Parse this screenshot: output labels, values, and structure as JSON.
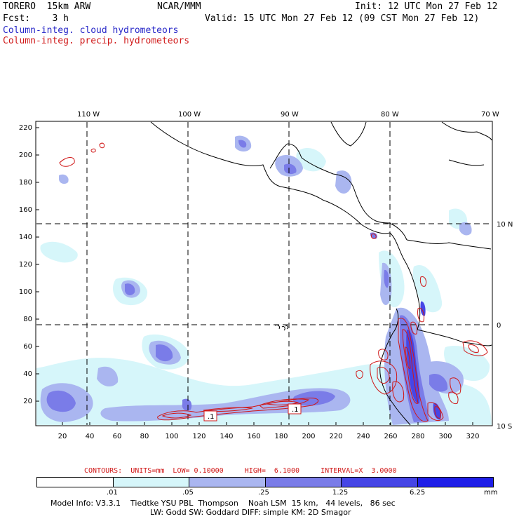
{
  "header": {
    "model": "TORERO  15km ARW",
    "org": "NCAR/MMM",
    "init": "Init: 12 UTC Mon 27 Feb 12",
    "fcst": "Fcst:    3 h",
    "valid": "Valid: 15 UTC Mon 27 Feb 12 (09 CST Mon 27 Feb 12)",
    "cloud_label": "Column-integ. cloud hydrometeors",
    "precip_label": "Column-integ. precip. hydrometeors"
  },
  "axes": {
    "lon_labels": [
      "110 W",
      "100 W",
      "90 W",
      "80 W",
      "70 W"
    ],
    "lat_labels": [
      "10 N",
      "0",
      "10 S"
    ],
    "y_ticks": [
      "220",
      "200",
      "180",
      "160",
      "140",
      "120",
      "100",
      "80",
      "60",
      "40",
      "20"
    ],
    "x_ticks": [
      "20",
      "40",
      "60",
      "80",
      "100",
      "120",
      "140",
      "160",
      "180",
      "200",
      "220",
      "240",
      "260",
      "280",
      "300",
      "320"
    ]
  },
  "contour_labels": [
    ".1",
    ".1"
  ],
  "contours_info": "CONTOURS:  UNITS=mm  LOW= 0.10000     HIGH=  6.1000     INTERVAL=X  3.0000",
  "colorbar": {
    "colors": [
      "#ffffff",
      "#d6f6fa",
      "#aab6f0",
      "#7a7ce8",
      "#4646e6",
      "#1e1ee8"
    ],
    "labels": [
      ".01",
      ".05",
      ".25",
      "1.25",
      "6.25",
      "mm"
    ]
  },
  "model_info": {
    "line1": "Model Info: V3.3.1    Tiedtke YSU PBL  Thompson    Noah LSM  15 km,   44 levels,   86 sec",
    "line2": "LW: Godd SW: Goddard DIFF: simple KM: 2D Smagor"
  }
}
